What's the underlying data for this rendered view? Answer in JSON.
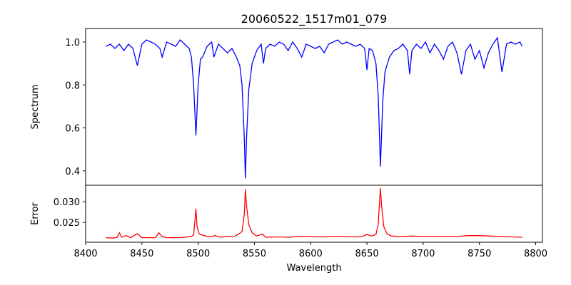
{
  "chart_data": {
    "type": "line",
    "title": "20060522_1517m01_079",
    "xlabel": "Wavelength",
    "xlim": [
      8400,
      8806
    ],
    "xticks": [
      "8400",
      "8450",
      "8500",
      "8550",
      "8600",
      "8650",
      "8700",
      "8750",
      "8800"
    ],
    "panels": [
      {
        "name": "spectrum",
        "ylabel": "Spectrum",
        "ylim": [
          0.333,
          1.063
        ],
        "yticks": [
          "0.4",
          "0.6",
          "0.8",
          "1.0"
        ],
        "ytick_values": [
          0.4,
          0.6,
          0.8,
          1.0
        ],
        "color": "#0000ff",
        "x": [
          8418,
          8422,
          8426,
          8430,
          8434,
          8438,
          8442,
          8446,
          8450,
          8454,
          8458,
          8462,
          8466,
          8468,
          8472,
          8476,
          8480,
          8484,
          8488,
          8492,
          8494,
          8496,
          8498,
          8500,
          8502,
          8504,
          8508,
          8512,
          8514,
          8518,
          8522,
          8526,
          8530,
          8534,
          8537,
          8539,
          8541,
          8542,
          8543,
          8545,
          8548,
          8552,
          8556,
          8558,
          8560,
          8564,
          8568,
          8572,
          8576,
          8580,
          8584,
          8588,
          8592,
          8596,
          8600,
          8604,
          8608,
          8612,
          8616,
          8620,
          8624,
          8628,
          8632,
          8636,
          8640,
          8644,
          8648,
          8650,
          8652,
          8655,
          8658,
          8660,
          8662,
          8664,
          8666,
          8670,
          8674,
          8678,
          8682,
          8686,
          8688,
          8690,
          8694,
          8698,
          8702,
          8706,
          8710,
          8714,
          8718,
          8722,
          8726,
          8730,
          8734,
          8738,
          8742,
          8746,
          8750,
          8754,
          8758,
          8762,
          8766,
          8770,
          8774,
          8778,
          8782,
          8786,
          8788
        ],
        "y": [
          0.98,
          0.99,
          0.97,
          0.99,
          0.96,
          0.99,
          0.97,
          0.89,
          0.99,
          1.01,
          1.0,
          0.99,
          0.97,
          0.93,
          1.0,
          0.99,
          0.98,
          1.01,
          0.99,
          0.97,
          0.93,
          0.8,
          0.565,
          0.8,
          0.92,
          0.93,
          0.98,
          1.0,
          0.93,
          0.99,
          0.97,
          0.95,
          0.97,
          0.93,
          0.89,
          0.8,
          0.55,
          0.365,
          0.55,
          0.78,
          0.9,
          0.96,
          0.99,
          0.9,
          0.97,
          0.99,
          0.98,
          1.0,
          0.99,
          0.96,
          1.0,
          0.97,
          0.93,
          0.99,
          0.98,
          0.97,
          0.98,
          0.95,
          0.99,
          1.0,
          1.01,
          0.99,
          1.0,
          0.99,
          0.98,
          0.99,
          0.97,
          0.87,
          0.97,
          0.96,
          0.9,
          0.75,
          0.42,
          0.72,
          0.86,
          0.93,
          0.96,
          0.97,
          0.99,
          0.96,
          0.85,
          0.96,
          0.99,
          0.97,
          1.0,
          0.95,
          0.99,
          0.96,
          0.92,
          0.98,
          1.0,
          0.95,
          0.85,
          0.96,
          0.99,
          0.92,
          0.96,
          0.88,
          0.95,
          0.99,
          1.02,
          0.86,
          0.99,
          1.0,
          0.99,
          1.0,
          0.98
        ]
      },
      {
        "name": "error",
        "ylabel": "Error",
        "ylim": [
          0.0202,
          0.034
        ],
        "yticks": [
          "0.025",
          "0.030"
        ],
        "ytick_values": [
          0.025,
          0.03
        ],
        "color": "#ff0000",
        "x": [
          8418,
          8424,
          8428,
          8430,
          8432,
          8436,
          8440,
          8446,
          8450,
          8456,
          8462,
          8465,
          8468,
          8472,
          8480,
          8488,
          8494,
          8496,
          8497,
          8498,
          8499,
          8501,
          8504,
          8510,
          8515,
          8520,
          8526,
          8532,
          8536,
          8539,
          8541,
          8542,
          8543,
          8545,
          8548,
          8552,
          8557,
          8560,
          8570,
          8580,
          8590,
          8600,
          8610,
          8620,
          8630,
          8640,
          8646,
          8650,
          8654,
          8658,
          8660,
          8661,
          8662,
          8663,
          8665,
          8668,
          8672,
          8680,
          8690,
          8700,
          8710,
          8720,
          8730,
          8740,
          8750,
          8760,
          8770,
          8780,
          8788
        ],
        "y": [
          0.0213,
          0.0212,
          0.0214,
          0.0225,
          0.0214,
          0.0218,
          0.0213,
          0.0223,
          0.0213,
          0.0213,
          0.0213,
          0.0225,
          0.0216,
          0.0213,
          0.0213,
          0.0214,
          0.0216,
          0.022,
          0.025,
          0.0283,
          0.024,
          0.0222,
          0.0219,
          0.0215,
          0.0218,
          0.0214,
          0.0216,
          0.0216,
          0.0222,
          0.0228,
          0.027,
          0.033,
          0.029,
          0.0245,
          0.0225,
          0.0217,
          0.0222,
          0.0214,
          0.0215,
          0.0214,
          0.0216,
          0.0216,
          0.0215,
          0.0216,
          0.0216,
          0.0215,
          0.0216,
          0.0221,
          0.0217,
          0.0221,
          0.0245,
          0.029,
          0.0333,
          0.029,
          0.024,
          0.0222,
          0.0217,
          0.0216,
          0.0217,
          0.0216,
          0.0216,
          0.0216,
          0.0216,
          0.0218,
          0.0218,
          0.0217,
          0.0216,
          0.0215,
          0.0214
        ]
      }
    ]
  }
}
